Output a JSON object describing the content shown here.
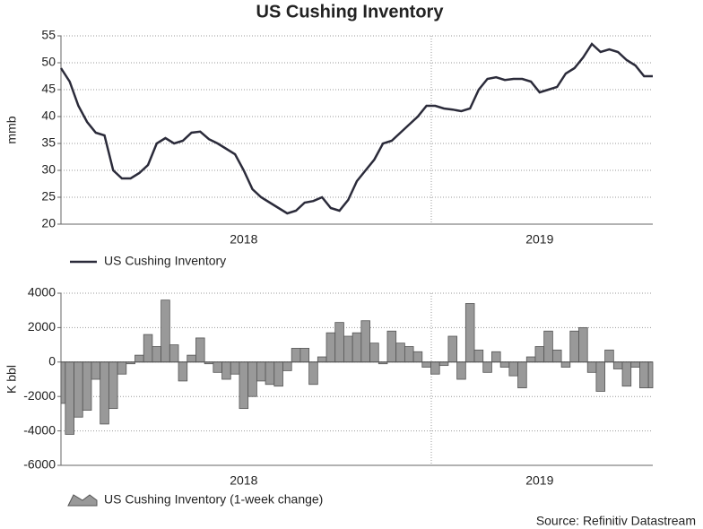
{
  "chart_data": [
    {
      "type": "line",
      "title": "US Cushing Inventory",
      "y_label": "mmb",
      "categories": [
        null,
        null,
        null,
        null,
        null,
        null,
        null,
        null,
        null,
        null,
        null,
        null,
        null,
        null,
        null,
        null,
        null,
        null,
        null,
        null,
        null,
        "2018",
        null,
        null,
        null,
        null,
        null,
        null,
        null,
        null,
        null,
        null,
        null,
        null,
        null,
        null,
        null,
        null,
        null,
        null,
        null,
        null,
        null,
        null,
        null,
        null,
        null,
        null,
        null,
        null,
        null,
        null,
        null,
        null,
        null,
        "2019",
        null,
        null,
        null,
        null,
        null,
        null,
        null,
        null,
        null,
        null,
        null,
        null,
        null
      ],
      "series": [
        {
          "name": "US Cushing Inventory",
          "color": "#2b2b3a",
          "values": [
            49,
            46.5,
            42,
            39,
            37,
            36.5,
            30,
            28.5,
            28.5,
            29.5,
            31,
            35,
            36,
            35,
            35.5,
            37,
            37.2,
            35.8,
            35,
            34,
            33,
            30,
            26.5,
            25,
            24,
            23,
            22,
            22.5,
            24,
            24.3,
            25,
            23,
            22.5,
            24.5,
            28,
            30,
            32,
            35,
            35.5,
            37,
            38.5,
            40,
            42,
            42,
            41.5,
            41.3,
            41,
            41.5,
            45,
            47,
            47.3,
            46.8,
            47,
            47,
            46.5,
            44.5,
            45,
            45.5,
            48,
            49,
            51,
            53.5,
            52,
            52.5,
            52,
            50.5,
            49.5,
            47.5,
            47.5
          ]
        }
      ],
      "ylim": [
        20,
        55
      ],
      "yticks": [
        20,
        25,
        30,
        35,
        40,
        45,
        50,
        55
      ],
      "grid": true
    },
    {
      "type": "bar",
      "y_label": "K bbl",
      "categories": [
        null,
        null,
        null,
        null,
        null,
        null,
        null,
        null,
        null,
        null,
        null,
        null,
        null,
        null,
        null,
        null,
        null,
        null,
        null,
        null,
        null,
        "2018",
        null,
        null,
        null,
        null,
        null,
        null,
        null,
        null,
        null,
        null,
        null,
        null,
        null,
        null,
        null,
        null,
        null,
        null,
        null,
        null,
        null,
        null,
        null,
        null,
        null,
        null,
        null,
        null,
        null,
        null,
        null,
        null,
        null,
        "2019",
        null,
        null,
        null,
        null,
        null,
        null,
        null,
        null,
        null,
        null,
        null,
        null,
        null
      ],
      "series": [
        {
          "name": "US Cushing Inventory (1-week change)",
          "color": "#999999",
          "values": [
            -2400,
            -4200,
            -3200,
            -2800,
            -1000,
            -3600,
            -2700,
            -700,
            -100,
            400,
            1600,
            900,
            3600,
            1000,
            -1100,
            400,
            1400,
            -100,
            -600,
            -1000,
            -700,
            -2700,
            -2000,
            -1100,
            -1300,
            -1400,
            -500,
            800,
            800,
            -1300,
            300,
            1700,
            2300,
            1500,
            1700,
            2400,
            1100,
            -100,
            1800,
            1100,
            900,
            600,
            -300,
            -700,
            -200,
            1500,
            -1000,
            3400,
            700,
            -600,
            600,
            -300,
            -800,
            -1500,
            300,
            900,
            1800,
            700,
            -300,
            1800,
            2000,
            -600,
            -1700,
            700,
            -400,
            -1400,
            -300,
            -1500,
            -1500
          ]
        }
      ],
      "ylim": [
        -6000,
        4000
      ],
      "yticks": [
        -6000,
        -4000,
        -2000,
        0,
        2000,
        4000
      ],
      "grid": true
    }
  ],
  "source": "Source: Refinitiv Datastream"
}
